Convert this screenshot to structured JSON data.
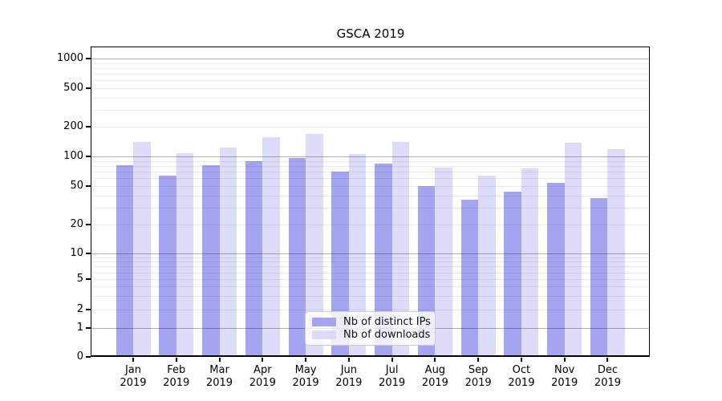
{
  "chart_data": {
    "type": "bar",
    "title": "GSCA 2019",
    "categories": [
      "Jan",
      "Feb",
      "Mar",
      "Apr",
      "May",
      "Jun",
      "Jul",
      "Aug",
      "Sep",
      "Oct",
      "Nov",
      "Dec"
    ],
    "x_year_label": "2019",
    "series": [
      {
        "name": "Nb of distinct IPs",
        "color": "#a4a4f1",
        "values": [
          79,
          61,
          79,
          86,
          92,
          68,
          82,
          48,
          35,
          42,
          52,
          36
        ]
      },
      {
        "name": "Nb of downloads",
        "color": "#dcdcf9",
        "values": [
          134,
          103,
          118,
          152,
          162,
          102,
          136,
          74,
          62,
          73,
          133,
          114
        ]
      }
    ],
    "xlabel": "",
    "ylabel": "",
    "yscale": "log above 1, linear 0-1 (symlog)",
    "ylim": [
      0,
      1330
    ],
    "y_tick_labels": [
      "0",
      "1",
      "2",
      "5",
      "10",
      "20",
      "50",
      "100",
      "200",
      "500",
      "1000"
    ],
    "grid": {
      "on": true,
      "drawn_above_bars": true,
      "major_values": [
        1,
        10,
        100,
        1000
      ],
      "minor_values": [
        2,
        3,
        4,
        5,
        6,
        7,
        8,
        9,
        20,
        30,
        40,
        50,
        60,
        70,
        80,
        90,
        200,
        300,
        400,
        500,
        600,
        700,
        800,
        900
      ],
      "major_color": "rgba(0,0,0,0.30)",
      "minor_color": "rgba(0,0,0,0.08)"
    },
    "legend": {
      "position": "lower center inside plot"
    }
  },
  "colors": {
    "background": "#ffffff",
    "axis": "#000000",
    "text": "#000000",
    "legend_border": "#cccccc"
  }
}
